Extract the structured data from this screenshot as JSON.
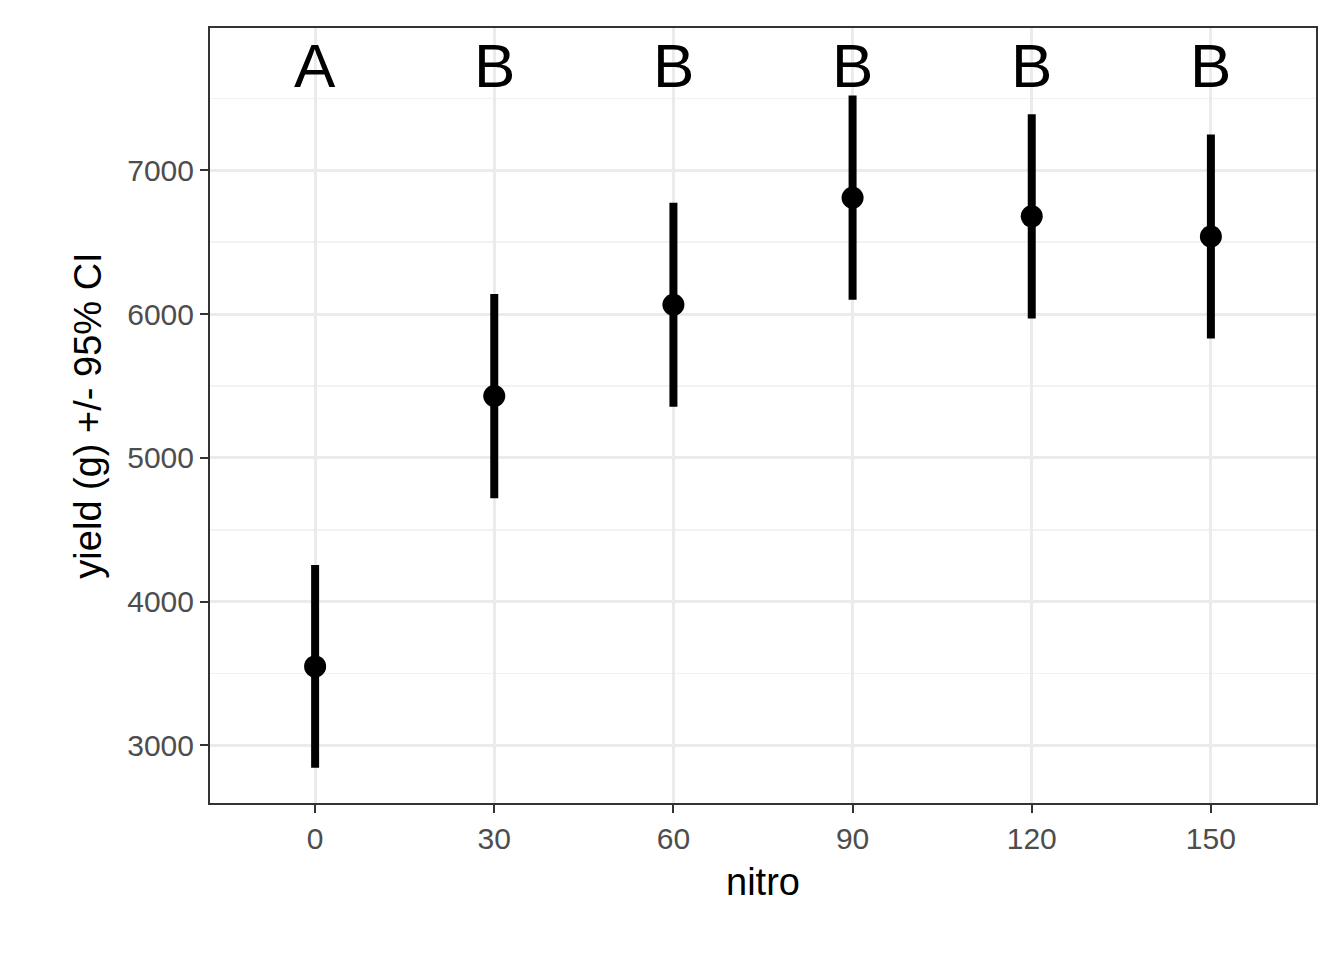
{
  "chart_data": {
    "type": "scatter",
    "x_label": "nitro",
    "y_label": "yield (g) +/- 95% CI",
    "x": [
      0,
      30,
      60,
      90,
      120,
      150
    ],
    "values": [
      3550,
      5430,
      6065,
      6810,
      6680,
      6540
    ],
    "ci_lower": [
      2845,
      4720,
      5355,
      6100,
      5970,
      5830
    ],
    "ci_upper": [
      4255,
      6140,
      6775,
      7520,
      7390,
      7250
    ],
    "group_labels": [
      "A",
      "B",
      "B",
      "B",
      "B",
      "B"
    ],
    "color": "#000000",
    "marker": "circle",
    "xlim": [
      -17.6,
      167.6
    ],
    "xticks": [
      0,
      30,
      60,
      90,
      120,
      150
    ],
    "ylim": [
      2600,
      7990
    ],
    "yticks": [
      3000,
      4000,
      5000,
      6000,
      7000
    ],
    "grid": true
  }
}
